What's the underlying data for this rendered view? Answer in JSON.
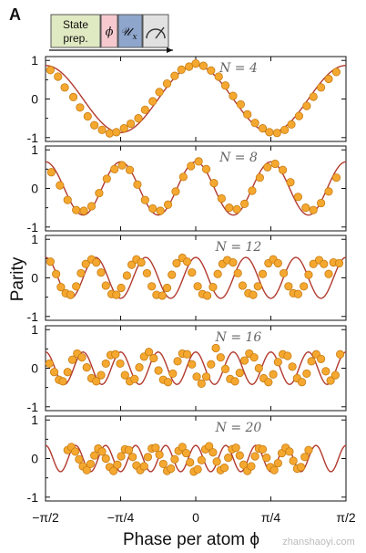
{
  "figure": {
    "panel_letter": "A",
    "sequence": {
      "state_label_line1": "State",
      "state_label_line2": "prep.",
      "phi_symbol": "ϕ",
      "u_symbol": "𝒰",
      "u_subscript": "x",
      "meter_icon": "measurement-meter-icon",
      "colors": {
        "state": "#dfe9c2",
        "phi": "#f6c9cf",
        "u": "#8fa6cc",
        "meter": "#e1e1e1"
      }
    },
    "watermark": "zhanshaoyi.com"
  },
  "chart_data": {
    "type": "scatter",
    "xlabel": "Phase per atom ϕ",
    "ylabel": "Parity",
    "xlim": [
      -1.5708,
      1.5708
    ],
    "ylim": [
      -1.1,
      1.1
    ],
    "xticks": [
      -1.5708,
      -0.7854,
      0,
      0.7854,
      1.5708
    ],
    "xtick_labels": [
      "−π/2",
      "−π/4",
      "0",
      "π/4",
      "π/2"
    ],
    "yticks": [
      -1,
      0,
      1
    ],
    "ytick_labels": [
      "-1",
      "0",
      "1"
    ],
    "colors": {
      "curve": "#b23a2e",
      "points": "#f5a830",
      "point_edge": "#c77c12"
    },
    "panels": [
      {
        "label": "N = 4",
        "N": 4,
        "fit": {
          "amplitude": 0.87,
          "phase_offset": 0.0
        },
        "points": {
          "x": [
            -1.52,
            -1.44,
            -1.37,
            -1.28,
            -1.21,
            -1.13,
            -1.06,
            -0.98,
            -0.9,
            -0.83,
            -0.75,
            -0.68,
            -0.6,
            -0.53,
            -0.45,
            -0.38,
            -0.3,
            -0.22,
            -0.15,
            -0.07,
            0.0,
            0.08,
            0.16,
            0.24,
            0.31,
            0.39,
            0.47,
            0.54,
            0.62,
            0.7,
            0.77,
            0.85,
            0.93,
            1.0,
            1.08,
            1.16,
            1.23,
            1.31,
            1.39,
            1.47
          ],
          "y": [
            0.75,
            0.58,
            0.3,
            0.05,
            -0.22,
            -0.45,
            -0.68,
            -0.8,
            -0.89,
            -0.86,
            -0.76,
            -0.64,
            -0.5,
            -0.28,
            -0.06,
            0.18,
            0.4,
            0.6,
            0.76,
            0.84,
            0.92,
            0.86,
            0.74,
            0.58,
            0.35,
            0.08,
            -0.14,
            -0.4,
            -0.62,
            -0.76,
            -0.86,
            -0.88,
            -0.8,
            -0.66,
            -0.44,
            -0.18,
            0.06,
            0.3,
            0.52,
            0.7
          ]
        }
      },
      {
        "label": "N = 8",
        "N": 8,
        "fit": {
          "amplitude": 0.69,
          "phase_offset": 0.0
        },
        "points": {
          "x": [
            -1.51,
            -1.42,
            -1.34,
            -1.25,
            -1.17,
            -1.09,
            -1.01,
            -0.93,
            -0.85,
            -0.77,
            -0.69,
            -0.61,
            -0.53,
            -0.45,
            -0.37,
            -0.29,
            -0.21,
            -0.13,
            -0.05,
            0.03,
            0.11,
            0.19,
            0.27,
            0.35,
            0.43,
            0.51,
            0.59,
            0.67,
            0.75,
            0.83,
            0.91,
            0.99,
            1.07,
            1.15,
            1.23,
            1.31,
            1.39,
            1.47
          ],
          "y": [
            0.42,
            0.08,
            -0.3,
            -0.56,
            -0.58,
            -0.46,
            -0.12,
            0.25,
            0.5,
            0.6,
            0.48,
            0.1,
            -0.3,
            -0.52,
            -0.58,
            -0.42,
            -0.08,
            0.3,
            0.58,
            0.7,
            0.5,
            0.14,
            -0.26,
            -0.5,
            -0.54,
            -0.4,
            -0.06,
            0.28,
            0.55,
            0.64,
            0.48,
            0.16,
            -0.22,
            -0.5,
            -0.56,
            -0.38,
            -0.08,
            0.28
          ]
        }
      },
      {
        "label": "N = 12",
        "N": 12,
        "fit": {
          "amplitude": 0.53,
          "phase_offset": 0.0
        },
        "points": {
          "x": [
            -1.52,
            -1.46,
            -1.41,
            -1.36,
            -1.31,
            -1.25,
            -1.2,
            -1.15,
            -1.09,
            -1.04,
            -0.99,
            -0.94,
            -0.88,
            -0.83,
            -0.78,
            -0.72,
            -0.67,
            -0.62,
            -0.57,
            -0.51,
            -0.46,
            -0.41,
            -0.35,
            -0.3,
            -0.25,
            -0.2,
            -0.14,
            -0.09,
            -0.04,
            0.02,
            0.07,
            0.12,
            0.18,
            0.23,
            0.28,
            0.33,
            0.39,
            0.44,
            0.49,
            0.55,
            0.6,
            0.65,
            0.7,
            0.76,
            0.81,
            0.86,
            0.92,
            0.97,
            1.02,
            1.07,
            1.13,
            1.18,
            1.23,
            1.29,
            1.34,
            1.39,
            1.44,
            1.5
          ],
          "y": [
            0.42,
            0.1,
            -0.24,
            -0.4,
            -0.44,
            -0.22,
            0.12,
            0.36,
            0.48,
            0.4,
            0.14,
            -0.2,
            -0.42,
            -0.44,
            -0.26,
            0.06,
            0.34,
            0.48,
            0.4,
            0.12,
            -0.22,
            -0.44,
            -0.46,
            -0.26,
            0.08,
            0.38,
            0.52,
            0.42,
            0.14,
            -0.22,
            -0.42,
            -0.46,
            -0.24,
            0.1,
            0.36,
            0.46,
            0.4,
            0.12,
            -0.2,
            -0.4,
            -0.44,
            -0.22,
            0.1,
            0.38,
            0.48,
            0.38,
            0.12,
            -0.22,
            -0.4,
            -0.42,
            -0.22,
            0.08,
            0.36,
            0.46,
            0.36,
            0.1,
            0.4,
            0.38
          ]
        }
      },
      {
        "label": "N = 16",
        "N": 16,
        "fit": {
          "amplitude": 0.42,
          "phase_offset": 0.0
        },
        "points": {
          "x": [
            -1.53,
            -1.48,
            -1.43,
            -1.39,
            -1.34,
            -1.29,
            -1.24,
            -1.19,
            -1.14,
            -1.09,
            -1.04,
            -0.99,
            -0.94,
            -0.89,
            -0.84,
            -0.79,
            -0.74,
            -0.69,
            -0.64,
            -0.59,
            -0.54,
            -0.49,
            -0.44,
            -0.39,
            -0.34,
            -0.29,
            -0.24,
            -0.19,
            -0.14,
            -0.09,
            -0.04,
            0.01,
            0.06,
            0.11,
            0.16,
            0.21,
            0.26,
            0.31,
            0.36,
            0.41,
            0.46,
            0.51,
            0.56,
            0.61,
            0.66,
            0.71,
            0.76,
            0.81,
            0.86,
            0.91,
            0.96,
            1.01,
            1.06,
            1.11,
            1.16,
            1.21,
            1.26,
            1.31,
            1.36,
            1.41,
            1.46,
            1.51
          ],
          "y": [
            0.12,
            -0.1,
            -0.3,
            -0.34,
            -0.1,
            0.22,
            0.38,
            0.28,
            0.02,
            -0.26,
            -0.34,
            -0.18,
            0.12,
            0.34,
            0.36,
            0.12,
            -0.18,
            -0.34,
            -0.28,
            0.02,
            0.3,
            0.42,
            0.26,
            -0.06,
            -0.3,
            -0.36,
            -0.14,
            0.18,
            0.38,
            0.36,
            0.1,
            -0.22,
            -0.4,
            -0.22,
            0.1,
            0.52,
            0.28,
            -0.02,
            -0.28,
            -0.34,
            -0.12,
            0.2,
            0.38,
            0.28,
            0.0,
            -0.26,
            -0.36,
            -0.16,
            0.16,
            0.36,
            0.32,
            0.04,
            -0.26,
            -0.36,
            -0.14,
            0.18,
            0.36,
            0.24,
            -0.08,
            -0.32,
            -0.18,
            0.36
          ]
        }
      },
      {
        "label": "N = 20",
        "N": 20,
        "fit": {
          "amplitude": 0.34,
          "phase_offset": 0.0
        },
        "points": {
          "x": [
            -1.34,
            -1.3,
            -1.26,
            -1.22,
            -1.18,
            -1.14,
            -1.1,
            -1.06,
            -1.02,
            -0.98,
            -0.94,
            -0.9,
            -0.86,
            -0.82,
            -0.78,
            -0.74,
            -0.7,
            -0.66,
            -0.62,
            -0.58,
            -0.54,
            -0.5,
            -0.46,
            -0.42,
            -0.38,
            -0.34,
            -0.3,
            -0.26,
            -0.22,
            -0.18,
            -0.14,
            -0.1,
            -0.06,
            -0.02,
            0.02,
            0.06,
            0.1,
            0.14,
            0.18,
            0.22,
            0.26,
            0.3,
            0.34,
            0.38,
            0.42,
            0.46,
            0.5,
            0.54,
            0.58,
            0.62,
            0.66,
            0.7,
            0.74,
            0.78,
            0.82,
            0.86,
            0.9,
            0.94,
            0.98,
            1.02,
            1.06,
            1.1,
            1.14,
            1.18
          ],
          "y": [
            0.22,
            0.3,
            0.18,
            -0.02,
            -0.2,
            -0.3,
            -0.14,
            0.08,
            0.26,
            0.18,
            0.0,
            -0.22,
            -0.32,
            -0.16,
            0.06,
            0.24,
            0.22,
            0.04,
            -0.18,
            -0.3,
            -0.2,
            0.04,
            0.26,
            0.28,
            0.1,
            -0.14,
            -0.32,
            -0.26,
            -0.02,
            0.2,
            0.3,
            0.14,
            -0.1,
            -0.34,
            -0.28,
            -0.04,
            0.24,
            0.32,
            0.16,
            -0.08,
            -0.3,
            -0.24,
            0.02,
            0.24,
            0.28,
            0.08,
            -0.16,
            -0.32,
            -0.2,
            0.06,
            0.26,
            0.24,
            0.02,
            -0.22,
            -0.3,
            -0.12,
            0.14,
            0.28,
            0.18,
            -0.06,
            -0.26,
            -0.22,
            0.04,
            0.22
          ]
        }
      }
    ]
  }
}
